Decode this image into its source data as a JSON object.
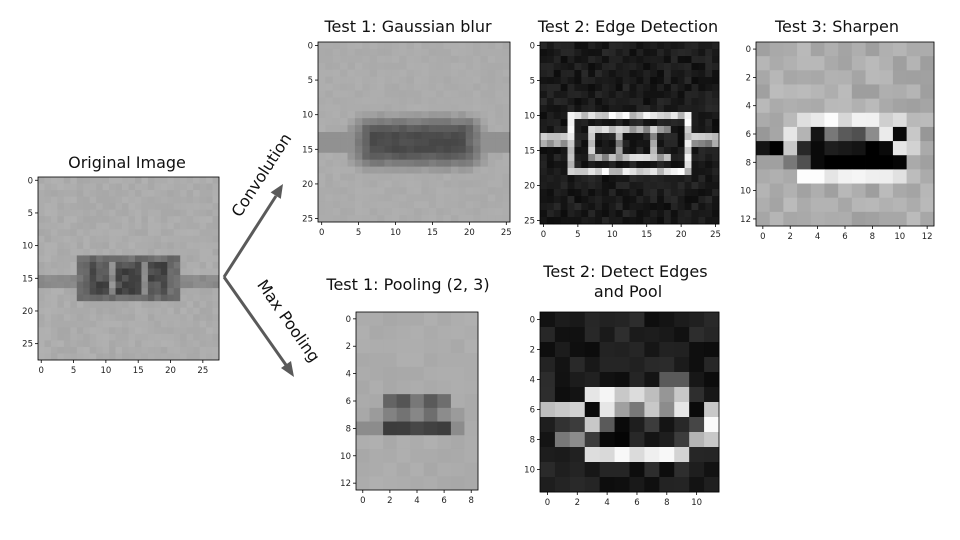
{
  "diagram": {
    "arrows": {
      "convolution_label": "Convolution",
      "max_pooling_label": "Max Pooling",
      "color": "#5a5a5a"
    },
    "panels": [
      {
        "id": "original",
        "title_lines": [
          "Original Image"
        ],
        "grid": [
          28,
          28
        ],
        "x_ticks": [
          0,
          5,
          10,
          15,
          20,
          25
        ],
        "y_ticks": [
          0,
          5,
          10,
          15,
          20,
          25
        ],
        "background_gray": 172
      },
      {
        "id": "blur",
        "title_lines": [
          "Test 1: Gaussian blur"
        ],
        "grid": [
          26,
          26
        ],
        "x_ticks": [
          0,
          5,
          10,
          15,
          20,
          25
        ],
        "y_ticks": [
          0,
          5,
          10,
          15,
          20,
          25
        ],
        "background_gray": 172
      },
      {
        "id": "edge",
        "title_lines": [
          "Test 2: Edge Detection"
        ],
        "grid": [
          26,
          26
        ],
        "x_ticks": [
          0,
          5,
          10,
          15,
          20,
          25
        ],
        "y_ticks": [
          0,
          5,
          10,
          15,
          20,
          25
        ],
        "background_gray": 12
      },
      {
        "id": "sharpen",
        "title_lines": [
          "Test 3: Sharpen"
        ],
        "grid": [
          13,
          13
        ],
        "x_ticks": [
          0,
          2,
          4,
          6,
          8,
          10,
          12
        ],
        "y_ticks": [
          0,
          2,
          4,
          6,
          8,
          10,
          12
        ],
        "background_gray": 165
      },
      {
        "id": "pool",
        "title_lines": [
          "Test 1: Pooling (2, 3)"
        ],
        "grid": [
          9,
          13
        ],
        "x_ticks": [
          0,
          2,
          4,
          6,
          8
        ],
        "y_ticks": [
          0,
          2,
          4,
          6,
          8,
          10,
          12
        ],
        "background_gray": 172
      },
      {
        "id": "edgepool",
        "title_lines": [
          "Test 2: Detect Edges",
          "and Pool"
        ],
        "grid": [
          12,
          12
        ],
        "x_ticks": [
          0,
          2,
          4,
          6,
          8,
          10
        ],
        "y_ticks": [
          0,
          2,
          4,
          6,
          8,
          10
        ],
        "background_gray": 15
      }
    ]
  }
}
